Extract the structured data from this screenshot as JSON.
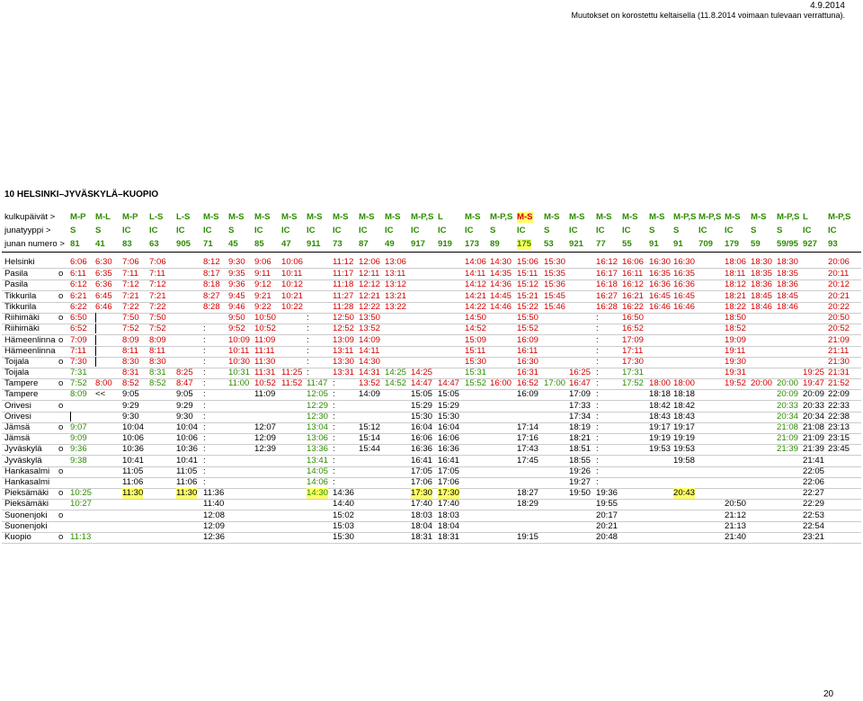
{
  "header": {
    "date": "4.9.2014",
    "note": "Muutokset on korostettu keltaisella (11.8.2014 voimaan tulevaan verrattuna)."
  },
  "title": "10 HELSINKI–JYVÄSKYLÄ–KUOPIO",
  "page_number": "20",
  "colors": {
    "green": "#2e8b00",
    "red": "#d40000",
    "black": "#000000",
    "highlight": "#ffff66"
  },
  "header_rows": [
    {
      "label": "kulkupäivät >",
      "cells": [
        "M-P",
        "M-L",
        "M-P",
        "L-S",
        "L-S",
        "M-S",
        "M-S",
        "M-S",
        "M-S",
        "M-S",
        "M-S",
        "M-S",
        "M-S",
        "M-P,S",
        "L",
        "M-S",
        "M-P,S",
        "M-S",
        "M-S",
        "M-S",
        "M-S",
        "M-S",
        "M-S",
        "M-P,S",
        "M-P,S",
        "M-S",
        "M-S",
        "M-P,S",
        "L",
        "M-P,S"
      ]
    },
    {
      "label": "junatyyppi >",
      "cells": [
        "S",
        "S",
        "IC",
        "IC",
        "IC",
        "IC",
        "S",
        "IC",
        "IC",
        "IC",
        "IC",
        "IC",
        "IC",
        "IC",
        "IC",
        "IC",
        "S",
        "IC",
        "S",
        "IC",
        "IC",
        "IC",
        "S",
        "S",
        "IC",
        "IC",
        "S",
        "S",
        "IC",
        "IC"
      ]
    },
    {
      "label": "junan numero >",
      "cells": [
        "81",
        "41",
        "83",
        "63",
        "905",
        "71",
        "45",
        "85",
        "47",
        "911",
        "73",
        "87",
        "49",
        "917",
        "919",
        "173",
        "89",
        "175",
        "53",
        "921",
        "77",
        "55",
        "91",
        "91",
        "709",
        "179",
        "59",
        "59/95",
        "927",
        "93"
      ]
    }
  ],
  "stations": [
    {
      "name": "Helsinki",
      "mark": "",
      "cells": [
        "6:06",
        "6:30",
        "7:06",
        "7:06",
        "",
        "8:12",
        "9:30",
        "9:06",
        "10:06",
        "",
        "11:12",
        "12:06",
        "13:06",
        "",
        "",
        "14:06",
        "14:30",
        "15:06",
        "15:30",
        "",
        "16:12",
        "16:06",
        "16:30",
        "16:30",
        "",
        "18:06",
        "18:30",
        "18:30",
        "",
        "20:06"
      ]
    },
    {
      "name": "Pasila",
      "mark": "o",
      "cells": [
        "6:11",
        "6:35",
        "7:11",
        "7:11",
        "",
        "8:17",
        "9:35",
        "9:11",
        "10:11",
        "",
        "11:17",
        "12:11",
        "13:11",
        "",
        "",
        "14:11",
        "14:35",
        "15:11",
        "15:35",
        "",
        "16:17",
        "16:11",
        "16:35",
        "16:35",
        "",
        "18:11",
        "18:35",
        "18:35",
        "",
        "20:11"
      ]
    },
    {
      "name": "Pasila",
      "mark": "",
      "cells": [
        "6:12",
        "6:36",
        "7:12",
        "7:12",
        "",
        "8:18",
        "9:36",
        "9:12",
        "10:12",
        "",
        "11:18",
        "12:12",
        "13:12",
        "",
        "",
        "14:12",
        "14:36",
        "15:12",
        "15:36",
        "",
        "16:18",
        "16:12",
        "16:36",
        "16:36",
        "",
        "18:12",
        "18:36",
        "18:36",
        "",
        "20:12"
      ]
    },
    {
      "name": "Tikkurila",
      "mark": "o",
      "cells": [
        "6:21",
        "6:45",
        "7:21",
        "7:21",
        "",
        "8:27",
        "9:45",
        "9:21",
        "10:21",
        "",
        "11:27",
        "12:21",
        "13:21",
        "",
        "",
        "14:21",
        "14:45",
        "15:21",
        "15:45",
        "",
        "16:27",
        "16:21",
        "16:45",
        "16:45",
        "",
        "18:21",
        "18:45",
        "18:45",
        "",
        "20:21"
      ]
    },
    {
      "name": "Tikkurila",
      "mark": "",
      "cells": [
        "6:22",
        "6:46",
        "7:22",
        "7:22",
        "",
        "8:28",
        "9:46",
        "9:22",
        "10:22",
        "",
        "11:28",
        "12:22",
        "13:22",
        "",
        "",
        "14:22",
        "14:46",
        "15:22",
        "15:46",
        "",
        "16:28",
        "16:22",
        "16:46",
        "16:46",
        "",
        "18:22",
        "18:46",
        "18:46",
        "",
        "20:22"
      ]
    },
    {
      "name": "Riihimäki",
      "mark": "o",
      "cells": [
        "6:50",
        "|",
        "7:50",
        "7:50",
        "",
        "",
        "9:50",
        "10:50",
        "",
        ":",
        "12:50",
        "13:50",
        "",
        "",
        "",
        "14:50",
        "",
        "15:50",
        "",
        "",
        ":",
        "16:50",
        "",
        "",
        "",
        "18:50",
        "",
        "",
        "",
        "20:50"
      ]
    },
    {
      "name": "Riihimäki",
      "mark": "",
      "cells": [
        "6:52",
        "|",
        "7:52",
        "7:52",
        "",
        ":",
        "9:52",
        "10:52",
        "",
        ":",
        "12:52",
        "13:52",
        "",
        "",
        "",
        "14:52",
        "",
        "15:52",
        "",
        "",
        ":",
        "16:52",
        "",
        "",
        "",
        "18:52",
        "",
        "",
        "",
        "20:52"
      ]
    },
    {
      "name": "Hämeenlinna",
      "mark": "o",
      "cells": [
        "7:09",
        "|",
        "8:09",
        "8:09",
        "",
        ":",
        "10:09",
        "11:09",
        "",
        ":",
        "13:09",
        "14:09",
        "",
        "",
        "",
        "15:09",
        "",
        "16:09",
        "",
        "",
        ":",
        "17:09",
        "",
        "",
        "",
        "19:09",
        "",
        "",
        "",
        "21:09"
      ]
    },
    {
      "name": "Hämeenlinna",
      "mark": "",
      "cells": [
        "7:11",
        "|",
        "8:11",
        "8:11",
        "",
        ":",
        "10:11",
        "11:11",
        "",
        ":",
        "13:11",
        "14:11",
        "",
        "",
        "",
        "15:11",
        "",
        "16:11",
        "",
        "",
        ":",
        "17:11",
        "",
        "",
        "",
        "19:11",
        "",
        "",
        "",
        "21:11"
      ]
    },
    {
      "name": "Toijala",
      "mark": "o",
      "cells": [
        "7:30",
        "|",
        "8:30",
        "8:30",
        "",
        ":",
        "10:30",
        "11:30",
        "",
        ":",
        "13:30",
        "14:30",
        "",
        "",
        "",
        "15:30",
        "",
        "16:30",
        "",
        "",
        ":",
        "17:30",
        "",
        "",
        "",
        "19:30",
        "",
        "",
        "",
        "21:30"
      ]
    },
    {
      "name": "Toijala",
      "mark": "",
      "cells": [
        "7:31",
        "",
        "8:31",
        "8:31",
        "8:25",
        ":",
        "10:31",
        "11:31",
        "11:25",
        ":",
        "13:31",
        "14:31",
        "14:25",
        "14:25",
        "",
        "15:31",
        "",
        "16:31",
        "",
        "16:25",
        ":",
        "17:31",
        "",
        "",
        "",
        "19:31",
        "",
        "",
        "19:25",
        "21:31"
      ]
    },
    {
      "name": "Tampere",
      "mark": "o",
      "cells": [
        "7:52",
        "8:00",
        "8:52",
        "8:52",
        "8:47",
        ":",
        "11:00",
        "10:52",
        "11:52",
        "11:47",
        ":",
        "13:52",
        "14:52",
        "14:47",
        "14:47",
        "15:52",
        "16:00",
        "16:52",
        "17:00",
        "16:47",
        ":",
        "17:52",
        "18:00",
        "18:00",
        "",
        "19:52",
        "20:00",
        "20:00",
        "19:47",
        "21:52"
      ]
    },
    {
      "name": "Tampere",
      "mark": "",
      "cells": [
        "8:09",
        "<<",
        "9:05",
        "",
        "9:05",
        ":",
        "",
        "11:09",
        "",
        "12:05",
        ":",
        "14:09",
        "",
        "15:05",
        "15:05",
        "",
        "",
        "16:09",
        "",
        "17:09",
        ":",
        "",
        "18:18",
        "18:18",
        "",
        "",
        "",
        "20:09",
        "20:09",
        "22:09"
      ]
    },
    {
      "name": "Orivesi",
      "mark": "o",
      "cells": [
        "",
        "",
        "9:29",
        "",
        "9:29",
        ":",
        "",
        "",
        "",
        "12:29",
        ":",
        "",
        "",
        "15:29",
        "15:29",
        "",
        "",
        "",
        "",
        "17:33",
        ":",
        "",
        "18:42",
        "18:42",
        "",
        "",
        "",
        "20:33",
        "20:33",
        "22:33"
      ]
    },
    {
      "name": "Orivesi",
      "mark": "",
      "cells": [
        "|",
        "",
        "9:30",
        "",
        "9:30",
        ":",
        "",
        "",
        "",
        "12:30",
        ":",
        "",
        "",
        "15:30",
        "15:30",
        "",
        "",
        "",
        "",
        "17:34",
        ":",
        "",
        "18:43",
        "18:43",
        "",
        "",
        "",
        "20:34",
        "20:34",
        "22:38"
      ]
    },
    {
      "name": "Jämsä",
      "mark": "o",
      "cells": [
        "9:07",
        "",
        "10:04",
        "",
        "10:04",
        ":",
        "",
        "12:07",
        "",
        "13:04",
        ":",
        "15:12",
        "",
        "16:04",
        "16:04",
        "",
        "",
        "17:14",
        "",
        "18:19",
        ":",
        "",
        "19:17",
        "19:17",
        "",
        "",
        "",
        "21:08",
        "21:08",
        "23:13"
      ]
    },
    {
      "name": "Jämsä",
      "mark": "",
      "cells": [
        "9:09",
        "",
        "10:06",
        "",
        "10:06",
        ":",
        "",
        "12:09",
        "",
        "13:06",
        ":",
        "15:14",
        "",
        "16:06",
        "16:06",
        "",
        "",
        "17:16",
        "",
        "18:21",
        ":",
        "",
        "19:19",
        "19:19",
        "",
        "",
        "",
        "21:09",
        "21:09",
        "23:15"
      ]
    },
    {
      "name": "Jyväskylä",
      "mark": "o",
      "cells": [
        "9:36",
        "",
        "10:36",
        "",
        "10:36",
        ":",
        "",
        "12:39",
        "",
        "13:36",
        ":",
        "15:44",
        "",
        "16:36",
        "16:36",
        "",
        "",
        "17:43",
        "",
        "18:51",
        ":",
        "",
        "19:53",
        "19:53",
        "",
        "",
        "",
        "21:39",
        "21:39",
        "23:45"
      ]
    },
    {
      "name": "Jyväskylä",
      "mark": "",
      "cells": [
        "9:38",
        "",
        "10:41",
        "",
        "10:41",
        ":",
        "",
        "",
        "",
        "13:41",
        ":",
        "",
        "",
        "16:41",
        "16:41",
        "",
        "",
        "17:45",
        "",
        "18:55",
        ":",
        "",
        "",
        "19:58",
        "",
        "",
        "",
        "",
        "21:41",
        ""
      ]
    },
    {
      "name": "Hankasalmi",
      "mark": "o",
      "cells": [
        "",
        "",
        "11:05",
        "",
        "11:05",
        ":",
        "",
        "",
        "",
        "14:05",
        ":",
        "",
        "",
        "17:05",
        "17:05",
        "",
        "",
        "",
        "",
        "19:26",
        ":",
        "",
        "",
        "",
        "",
        "",
        "",
        "",
        "22:05",
        ""
      ]
    },
    {
      "name": "Hankasalmi",
      "mark": "",
      "cells": [
        "",
        "",
        "11:06",
        "",
        "11:06",
        ":",
        "",
        "",
        "",
        "14:06",
        ":",
        "",
        "",
        "17:06",
        "17:06",
        "",
        "",
        "",
        "",
        "19:27",
        ":",
        "",
        "",
        "",
        "",
        "",
        "",
        "",
        "22:06",
        ""
      ]
    },
    {
      "name": "Pieksämäki",
      "mark": "o",
      "cells": [
        "10:25",
        "",
        "11:30",
        "",
        "11:30",
        "11:36",
        "",
        "",
        "",
        "14:30",
        "14:36",
        "",
        "",
        "17:30",
        "17:30",
        "",
        "",
        "18:27",
        "",
        "19:50",
        "19:36",
        "",
        "",
        "20:43",
        "",
        "",
        "",
        "",
        "22:27",
        ""
      ]
    },
    {
      "name": "Pieksämäki",
      "mark": "",
      "cells": [
        "10:27",
        "",
        "",
        "",
        "",
        "11:40",
        "",
        "",
        "",
        "",
        "14:40",
        "",
        "",
        "17:40",
        "17:40",
        "",
        "",
        "18:29",
        "",
        "",
        "19:55",
        "",
        "",
        "",
        "",
        "20:50",
        "",
        "",
        "22:29",
        ""
      ]
    },
    {
      "name": "Suonenjoki",
      "mark": "o",
      "cells": [
        "",
        "",
        "",
        "",
        "",
        "12:08",
        "",
        "",
        "",
        "",
        "15:02",
        "",
        "",
        "18:03",
        "18:03",
        "",
        "",
        "",
        "",
        "",
        "20:17",
        "",
        "",
        "",
        "",
        "21:12",
        "",
        "",
        "22:53",
        ""
      ]
    },
    {
      "name": "Suonenjoki",
      "mark": "",
      "cells": [
        "",
        "",
        "",
        "",
        "",
        "12:09",
        "",
        "",
        "",
        "",
        "15:03",
        "",
        "",
        "18:04",
        "18:04",
        "",
        "",
        "",
        "",
        "",
        "20:21",
        "",
        "",
        "",
        "",
        "21:13",
        "",
        "",
        "22:54",
        ""
      ]
    },
    {
      "name": "Kuopio",
      "mark": "o",
      "cells": [
        "11:13",
        "",
        "",
        "",
        "",
        "12:36",
        "",
        "",
        "",
        "",
        "15:30",
        "",
        "",
        "18:31",
        "18:31",
        "",
        "",
        "19:15",
        "",
        "",
        "20:48",
        "",
        "",
        "",
        "",
        "21:40",
        "",
        "",
        "23:21",
        ""
      ]
    }
  ]
}
